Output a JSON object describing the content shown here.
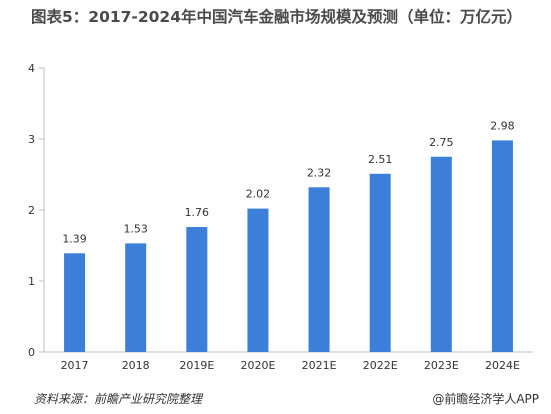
{
  "chart_data": {
    "type": "bar",
    "title": "图表5：2017-2024年中国汽车金融市场规模及预测（单位：万亿元）",
    "categories": [
      "2017",
      "2018",
      "2019E",
      "2020E",
      "2021E",
      "2022E",
      "2023E",
      "2024E"
    ],
    "values": [
      1.39,
      1.53,
      1.76,
      2.02,
      2.32,
      2.51,
      2.75,
      2.98
    ],
    "data_labels": [
      "1.39",
      "1.53",
      "1.76",
      "2.02",
      "2.32",
      "2.51",
      "2.75",
      "2.98"
    ],
    "ylim": [
      0,
      4
    ],
    "yticks": [
      0,
      1,
      2,
      3,
      4
    ],
    "grid": false,
    "legend": "none",
    "bar_color": "#3b7fd9"
  },
  "footer": {
    "source": "资料来源：前瞻产业研究院整理",
    "brand": "@前瞻经济学人APP"
  }
}
